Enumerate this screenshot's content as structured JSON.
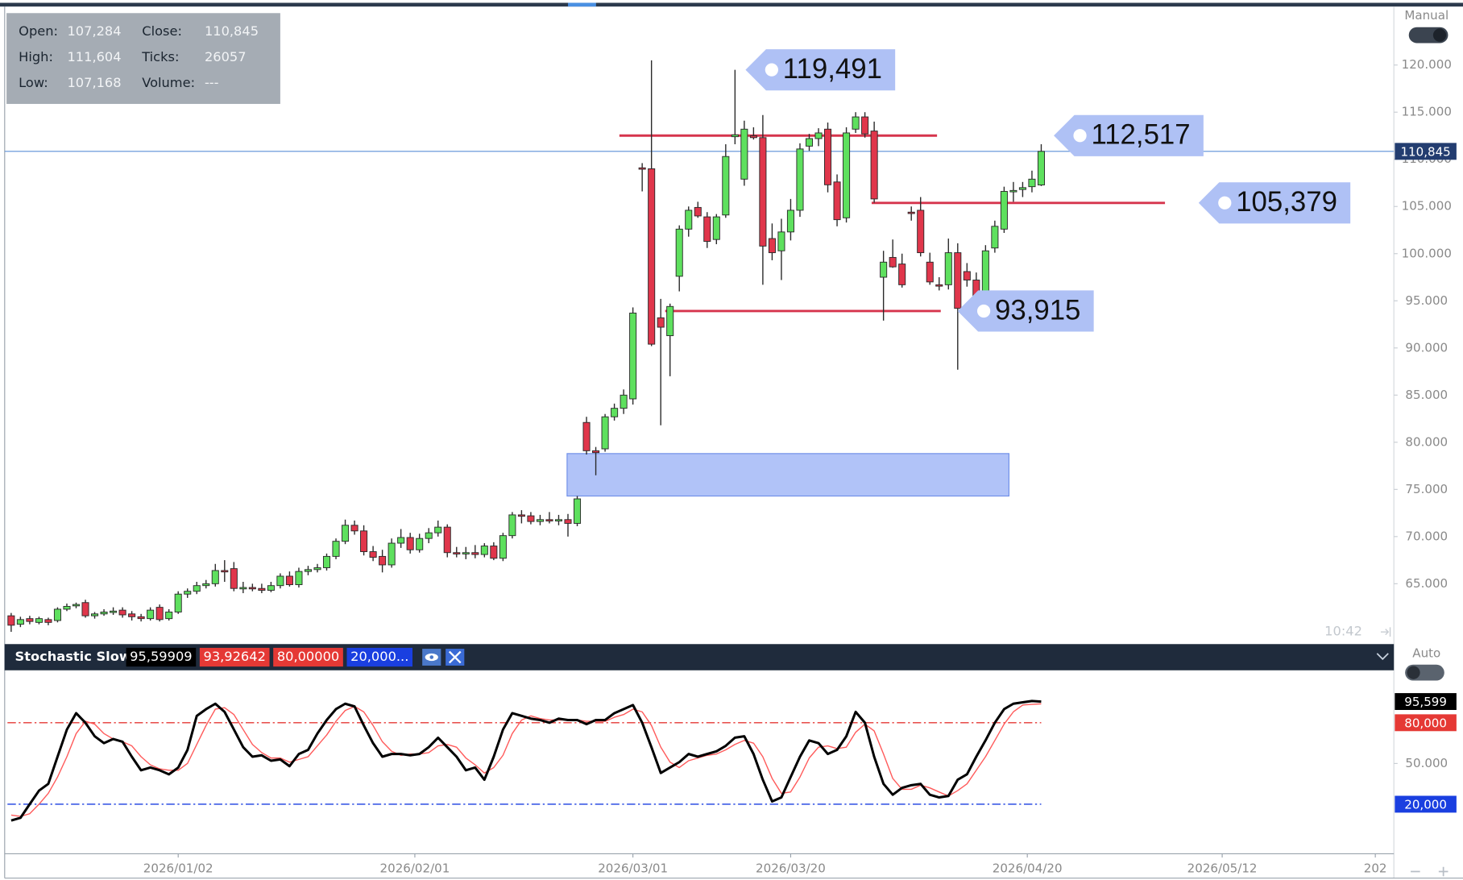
{
  "chart_data": [
    {
      "type": "candlestick",
      "info": [
        {
          "label": "Open:",
          "value": "107,284"
        },
        {
          "label": "High:",
          "value": "111,604"
        },
        {
          "label": "Low:",
          "value": "107,168"
        },
        {
          "label": "Close:",
          "value": "110,845"
        },
        {
          "label": "Ticks:",
          "value": "26057"
        },
        {
          "label": "Volume:",
          "value": "---"
        }
      ],
      "scale_mode": "Manual",
      "time_label": "10:42",
      "xlim": [
        -0.7,
        149
      ],
      "ylim": [
        58600,
        126200
      ],
      "yticks": [
        {
          "value": 65000,
          "label": "65.000"
        },
        {
          "value": 70000,
          "label": "70.000"
        },
        {
          "value": 75000,
          "label": "75.000"
        },
        {
          "value": 80000,
          "label": "80.000"
        },
        {
          "value": 85000,
          "label": "85.000"
        },
        {
          "value": 90000,
          "label": "90.000"
        },
        {
          "value": 95000,
          "label": "95.000"
        },
        {
          "value": 100000,
          "label": "100.000"
        },
        {
          "value": 105000,
          "label": "105.000"
        },
        {
          "value": 110000,
          "label": "110.000"
        },
        {
          "value": 115000,
          "label": "115.000"
        },
        {
          "value": 120000,
          "label": "120.000"
        }
      ],
      "up_color": "#5ee05e",
      "down_color": "#e0364b",
      "open": [
        61600,
        60700,
        61300,
        60900,
        61200,
        61100,
        62300,
        62700,
        63000,
        61600,
        61800,
        62000,
        62200,
        61800,
        61500,
        61300,
        62500,
        61300,
        62000,
        63900,
        64200,
        64800,
        65000,
        66400,
        66600,
        64500,
        64600,
        64500,
        64300,
        64800,
        65800,
        64900,
        66300,
        66500,
        66700,
        67900,
        69500,
        71200,
        70600,
        68400,
        67900,
        67000,
        69300,
        69900,
        68600,
        69800,
        70400,
        71000,
        68300,
        68200,
        68300,
        68100,
        69000,
        67700,
        70100,
        72300,
        72200,
        71600,
        71800,
        71700,
        71800,
        71400,
        82100,
        79100,
        79300,
        82700,
        83600,
        84600,
        109100,
        109000,
        93200,
        91300,
        97600,
        102600,
        104900,
        103900,
        101500,
        104100,
        112400,
        107900,
        112500,
        112300,
        101600,
        100300,
        102300,
        104600,
        111400,
        112200,
        113200,
        107600,
        103800,
        113200,
        114500,
        113000,
        97500,
        99600,
        98900,
        104400,
        104600,
        99100,
        96700,
        96700,
        100100,
        98100,
        97200,
        95700,
        100600,
        102600,
        106600,
        106800,
        107100,
        107284
      ],
      "high": [
        61900,
        61500,
        61600,
        61500,
        61400,
        62500,
        62900,
        63000,
        63300,
        62000,
        62300,
        62500,
        62500,
        62100,
        61800,
        62500,
        62800,
        62300,
        64200,
        64500,
        65200,
        65400,
        67100,
        67500,
        67300,
        65200,
        65000,
        65000,
        65200,
        66100,
        66300,
        66700,
        66900,
        67100,
        68200,
        69800,
        71800,
        71700,
        71200,
        69000,
        68600,
        69800,
        70800,
        70400,
        70300,
        70900,
        71700,
        71300,
        68900,
        68900,
        69100,
        69300,
        69400,
        70400,
        72600,
        72800,
        72600,
        72300,
        72600,
        72300,
        72400,
        74300,
        82700,
        79500,
        83000,
        84100,
        85600,
        94300,
        109600,
        120500,
        95200,
        94700,
        103000,
        105000,
        105500,
        104400,
        104200,
        111600,
        119491,
        114100,
        113400,
        114700,
        103200,
        103700,
        105800,
        111700,
        112700,
        113300,
        113900,
        108400,
        113400,
        115000,
        115000,
        114000,
        100300,
        101500,
        100000,
        105000,
        106000,
        100100,
        97500,
        101600,
        101100,
        99000,
        98000,
        100900,
        103500,
        107100,
        107600,
        107600,
        108800,
        111604
      ],
      "low": [
        59900,
        60400,
        60700,
        60700,
        60600,
        60900,
        62100,
        62400,
        61400,
        61300,
        61600,
        61700,
        61400,
        61100,
        61000,
        61100,
        61000,
        61100,
        61800,
        63500,
        63900,
        64500,
        64700,
        65200,
        64200,
        64000,
        64200,
        64000,
        64100,
        64500,
        64700,
        64600,
        65900,
        66200,
        66400,
        67600,
        69200,
        70200,
        68000,
        67400,
        66200,
        66700,
        68800,
        68200,
        68300,
        69300,
        70000,
        67800,
        67800,
        67600,
        67700,
        67800,
        67500,
        67400,
        69800,
        71400,
        71300,
        71200,
        71400,
        71200,
        70000,
        71100,
        78700,
        76500,
        79000,
        82300,
        83000,
        84000,
        106600,
        90200,
        81800,
        87000,
        96000,
        101800,
        103800,
        100600,
        101000,
        103800,
        111600,
        107200,
        112100,
        96700,
        99300,
        97200,
        101400,
        103900,
        110900,
        111400,
        106500,
        102900,
        103300,
        112800,
        112300,
        105400,
        92900,
        98500,
        96400,
        103500,
        99700,
        96700,
        96100,
        96200,
        87700,
        96500,
        95000,
        95300,
        100100,
        102200,
        105500,
        106000,
        106500,
        107168
      ],
      "close": [
        60600,
        61200,
        61000,
        61300,
        60900,
        62300,
        62600,
        62800,
        61600,
        61800,
        62000,
        62100,
        61700,
        61500,
        61300,
        62200,
        61200,
        62000,
        63900,
        64200,
        64800,
        65000,
        66400,
        66300,
        64500,
        64600,
        64500,
        64300,
        64800,
        65800,
        64900,
        66300,
        66500,
        66700,
        67900,
        69500,
        71200,
        70600,
        68400,
        67800,
        67000,
        69300,
        69900,
        68600,
        69800,
        70400,
        71000,
        68300,
        68200,
        68300,
        68100,
        69000,
        67700,
        70100,
        72300,
        72200,
        71600,
        71800,
        71700,
        71800,
        71400,
        74000,
        79100,
        78900,
        82700,
        83600,
        85000,
        93700,
        109000,
        90400,
        92200,
        94400,
        102600,
        104600,
        104000,
        101300,
        103900,
        110300,
        112600,
        113200,
        112300,
        100800,
        100100,
        102300,
        104600,
        111100,
        112200,
        112800,
        107300,
        103600,
        112800,
        114500,
        112700,
        105800,
        99100,
        98600,
        96700,
        104300,
        100100,
        97000,
        96600,
        100100,
        94200,
        97200,
        95400,
        100300,
        102900,
        106600,
        106700,
        107000,
        107900,
        110845
      ],
      "zone": {
        "low": 74300,
        "high": 78800,
        "color": "#b1c3f8"
      },
      "level_color": "#d6344c",
      "tag_color": "#afc1f5",
      "levels": [
        {
          "value": 112517,
          "label": "112,517"
        },
        {
          "value": 105379,
          "label": "105,379"
        },
        {
          "value": 93915,
          "label": "93,915"
        }
      ],
      "annotations": [
        {
          "value": 119491,
          "label": "119,491"
        }
      ],
      "last_price": {
        "value": 110845,
        "label": "110,845",
        "color": "#5b8fd6"
      }
    },
    {
      "type": "line",
      "title": "Stochastic Slow",
      "scale_mode": "Auto",
      "readouts": [
        {
          "label": "95,59909",
          "color": "#000000"
        },
        {
          "label": "93,92642",
          "color": "#e53935"
        },
        {
          "label": "80,00000",
          "color": "#e53935"
        },
        {
          "label": "20,000...",
          "color": "#1a3fe0"
        }
      ],
      "xlim": [
        -0.7,
        149
      ],
      "xticks": [
        {
          "value": 18,
          "label": "2026/01/02"
        },
        {
          "value": 43.5,
          "label": "2026/02/01"
        },
        {
          "value": 67,
          "label": "2026/03/01"
        },
        {
          "value": 84,
          "label": "2026/03/20"
        },
        {
          "value": 109.5,
          "label": "2026/04/20"
        },
        {
          "value": 130.5,
          "label": "2026/05/12"
        },
        {
          "value": 147,
          "label": "202"
        }
      ],
      "ylim": [
        -16.5,
        118.6
      ],
      "yticks": [
        {
          "value": 50,
          "label": "50.000"
        }
      ],
      "series": [
        {
          "color": "#000000",
          "values": [
            8,
            10,
            20,
            30,
            35,
            55,
            75,
            87,
            80,
            70,
            65,
            68,
            66,
            55,
            45,
            47,
            45,
            42,
            47,
            60,
            85,
            90,
            94,
            88,
            75,
            62,
            55,
            56,
            52,
            53,
            48,
            57,
            60,
            72,
            82,
            90,
            94,
            92,
            78,
            65,
            55,
            57,
            57,
            56,
            57,
            62,
            69,
            62,
            55,
            45,
            47,
            38,
            55,
            75,
            87,
            85,
            83,
            82,
            80,
            83,
            82,
            82,
            79,
            82,
            82,
            87,
            90,
            93,
            80,
            62,
            43,
            47,
            51,
            57,
            55,
            57,
            59,
            63,
            69,
            70,
            57,
            38,
            22,
            25,
            40,
            55,
            67,
            65,
            57,
            60,
            70,
            88,
            80,
            55,
            35,
            27,
            32,
            34,
            35,
            27,
            25,
            26,
            38,
            42,
            55,
            67,
            80,
            90,
            94,
            95,
            96,
            95.59909
          ]
        },
        {
          "color": "#ff5a5a",
          "values": [
            12,
            11,
            13,
            20,
            28,
            40,
            55,
            72,
            81,
            79,
            72,
            68,
            66,
            63,
            55,
            49,
            46,
            45,
            45,
            50,
            64,
            78,
            90,
            91,
            86,
            75,
            64,
            58,
            54,
            54,
            51,
            53,
            55,
            63,
            71,
            81,
            89,
            92,
            88,
            78,
            66,
            59,
            56,
            57,
            57,
            58,
            63,
            64,
            62,
            54,
            49,
            43,
            47,
            56,
            72,
            82,
            85,
            83,
            82,
            82,
            82,
            82,
            81,
            81,
            81,
            84,
            86,
            90,
            88,
            78,
            62,
            51,
            47,
            52,
            54,
            56,
            57,
            60,
            64,
            67,
            65,
            55,
            39,
            28,
            29,
            40,
            54,
            62,
            63,
            61,
            62,
            73,
            79,
            74,
            57,
            39,
            31,
            31,
            34,
            32,
            29,
            26,
            30,
            35,
            45,
            55,
            67,
            79,
            88,
            93,
            93.5,
            93.92642
          ]
        }
      ],
      "levels": [
        {
          "value": 80,
          "label": "80,000",
          "color": "#e53935"
        },
        {
          "value": 20,
          "label": "20,000",
          "color": "#1a3fe0"
        }
      ],
      "last_label": {
        "value": 95.599,
        "label": "95,599"
      }
    }
  ]
}
